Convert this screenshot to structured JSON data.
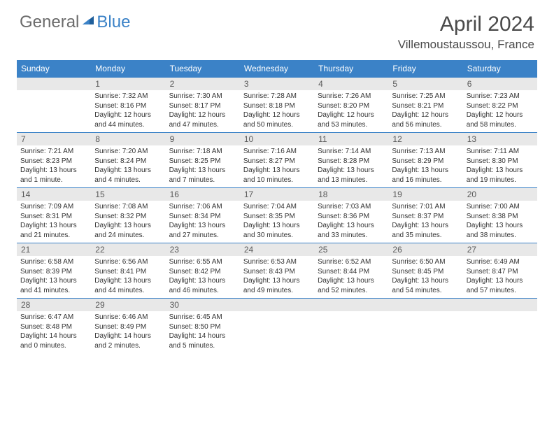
{
  "logo": {
    "general": "General",
    "blue": "Blue"
  },
  "title": "April 2024",
  "location": "Villemoustaussou, France",
  "colors": {
    "header_bg": "#3b82c7",
    "header_text": "#ffffff",
    "daynum_bg": "#e8e8e8",
    "daynum_text": "#5a5a5a",
    "body_text": "#333333",
    "title_text": "#4a4a4a",
    "logo_gray": "#6b6b6b",
    "logo_blue": "#3b82c7",
    "cell_border": "#3b82c7"
  },
  "typography": {
    "title_fontsize": 30,
    "location_fontsize": 17,
    "dayhead_fontsize": 12,
    "daynum_fontsize": 12,
    "cell_fontsize": 10
  },
  "dayNames": [
    "Sunday",
    "Monday",
    "Tuesday",
    "Wednesday",
    "Thursday",
    "Friday",
    "Saturday"
  ],
  "weeks": [
    [
      null,
      {
        "n": "1",
        "sr": "Sunrise: 7:32 AM",
        "ss": "Sunset: 8:16 PM",
        "dl": "Daylight: 12 hours and 44 minutes."
      },
      {
        "n": "2",
        "sr": "Sunrise: 7:30 AM",
        "ss": "Sunset: 8:17 PM",
        "dl": "Daylight: 12 hours and 47 minutes."
      },
      {
        "n": "3",
        "sr": "Sunrise: 7:28 AM",
        "ss": "Sunset: 8:18 PM",
        "dl": "Daylight: 12 hours and 50 minutes."
      },
      {
        "n": "4",
        "sr": "Sunrise: 7:26 AM",
        "ss": "Sunset: 8:20 PM",
        "dl": "Daylight: 12 hours and 53 minutes."
      },
      {
        "n": "5",
        "sr": "Sunrise: 7:25 AM",
        "ss": "Sunset: 8:21 PM",
        "dl": "Daylight: 12 hours and 56 minutes."
      },
      {
        "n": "6",
        "sr": "Sunrise: 7:23 AM",
        "ss": "Sunset: 8:22 PM",
        "dl": "Daylight: 12 hours and 58 minutes."
      }
    ],
    [
      {
        "n": "7",
        "sr": "Sunrise: 7:21 AM",
        "ss": "Sunset: 8:23 PM",
        "dl": "Daylight: 13 hours and 1 minute."
      },
      {
        "n": "8",
        "sr": "Sunrise: 7:20 AM",
        "ss": "Sunset: 8:24 PM",
        "dl": "Daylight: 13 hours and 4 minutes."
      },
      {
        "n": "9",
        "sr": "Sunrise: 7:18 AM",
        "ss": "Sunset: 8:25 PM",
        "dl": "Daylight: 13 hours and 7 minutes."
      },
      {
        "n": "10",
        "sr": "Sunrise: 7:16 AM",
        "ss": "Sunset: 8:27 PM",
        "dl": "Daylight: 13 hours and 10 minutes."
      },
      {
        "n": "11",
        "sr": "Sunrise: 7:14 AM",
        "ss": "Sunset: 8:28 PM",
        "dl": "Daylight: 13 hours and 13 minutes."
      },
      {
        "n": "12",
        "sr": "Sunrise: 7:13 AM",
        "ss": "Sunset: 8:29 PM",
        "dl": "Daylight: 13 hours and 16 minutes."
      },
      {
        "n": "13",
        "sr": "Sunrise: 7:11 AM",
        "ss": "Sunset: 8:30 PM",
        "dl": "Daylight: 13 hours and 19 minutes."
      }
    ],
    [
      {
        "n": "14",
        "sr": "Sunrise: 7:09 AM",
        "ss": "Sunset: 8:31 PM",
        "dl": "Daylight: 13 hours and 21 minutes."
      },
      {
        "n": "15",
        "sr": "Sunrise: 7:08 AM",
        "ss": "Sunset: 8:32 PM",
        "dl": "Daylight: 13 hours and 24 minutes."
      },
      {
        "n": "16",
        "sr": "Sunrise: 7:06 AM",
        "ss": "Sunset: 8:34 PM",
        "dl": "Daylight: 13 hours and 27 minutes."
      },
      {
        "n": "17",
        "sr": "Sunrise: 7:04 AM",
        "ss": "Sunset: 8:35 PM",
        "dl": "Daylight: 13 hours and 30 minutes."
      },
      {
        "n": "18",
        "sr": "Sunrise: 7:03 AM",
        "ss": "Sunset: 8:36 PM",
        "dl": "Daylight: 13 hours and 33 minutes."
      },
      {
        "n": "19",
        "sr": "Sunrise: 7:01 AM",
        "ss": "Sunset: 8:37 PM",
        "dl": "Daylight: 13 hours and 35 minutes."
      },
      {
        "n": "20",
        "sr": "Sunrise: 7:00 AM",
        "ss": "Sunset: 8:38 PM",
        "dl": "Daylight: 13 hours and 38 minutes."
      }
    ],
    [
      {
        "n": "21",
        "sr": "Sunrise: 6:58 AM",
        "ss": "Sunset: 8:39 PM",
        "dl": "Daylight: 13 hours and 41 minutes."
      },
      {
        "n": "22",
        "sr": "Sunrise: 6:56 AM",
        "ss": "Sunset: 8:41 PM",
        "dl": "Daylight: 13 hours and 44 minutes."
      },
      {
        "n": "23",
        "sr": "Sunrise: 6:55 AM",
        "ss": "Sunset: 8:42 PM",
        "dl": "Daylight: 13 hours and 46 minutes."
      },
      {
        "n": "24",
        "sr": "Sunrise: 6:53 AM",
        "ss": "Sunset: 8:43 PM",
        "dl": "Daylight: 13 hours and 49 minutes."
      },
      {
        "n": "25",
        "sr": "Sunrise: 6:52 AM",
        "ss": "Sunset: 8:44 PM",
        "dl": "Daylight: 13 hours and 52 minutes."
      },
      {
        "n": "26",
        "sr": "Sunrise: 6:50 AM",
        "ss": "Sunset: 8:45 PM",
        "dl": "Daylight: 13 hours and 54 minutes."
      },
      {
        "n": "27",
        "sr": "Sunrise: 6:49 AM",
        "ss": "Sunset: 8:47 PM",
        "dl": "Daylight: 13 hours and 57 minutes."
      }
    ],
    [
      {
        "n": "28",
        "sr": "Sunrise: 6:47 AM",
        "ss": "Sunset: 8:48 PM",
        "dl": "Daylight: 14 hours and 0 minutes."
      },
      {
        "n": "29",
        "sr": "Sunrise: 6:46 AM",
        "ss": "Sunset: 8:49 PM",
        "dl": "Daylight: 14 hours and 2 minutes."
      },
      {
        "n": "30",
        "sr": "Sunrise: 6:45 AM",
        "ss": "Sunset: 8:50 PM",
        "dl": "Daylight: 14 hours and 5 minutes."
      },
      null,
      null,
      null,
      null
    ]
  ]
}
